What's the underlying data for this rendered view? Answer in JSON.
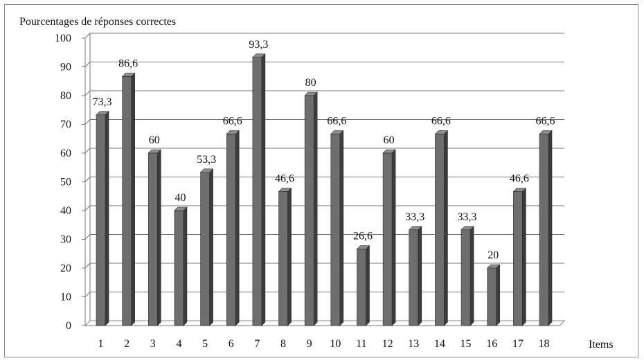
{
  "chart_data": {
    "type": "bar",
    "title": "Pourcentages de réponses correctes",
    "xlabel": "Items",
    "ylabel": "",
    "ylim": [
      0,
      100
    ],
    "yticks": [
      0,
      10,
      20,
      30,
      40,
      50,
      60,
      70,
      80,
      90,
      100
    ],
    "grid": true,
    "legend": "none",
    "categories": [
      "1",
      "2",
      "3",
      "4",
      "5",
      "6",
      "7",
      "8",
      "9",
      "10",
      "11",
      "12",
      "13",
      "14",
      "15",
      "16",
      "17",
      "18"
    ],
    "values": [
      73.3,
      86.6,
      60,
      40,
      53.3,
      66.6,
      93.3,
      46.6,
      80,
      66.6,
      26.6,
      60,
      33.3,
      66.6,
      33.3,
      20,
      46.6,
      66.6
    ],
    "value_labels": [
      "73,3",
      "86,6",
      "60",
      "40",
      "53,3",
      "66,6",
      "93,3",
      "46,6",
      "80",
      "66,6",
      "26,6",
      "60",
      "33,3",
      "66,6",
      "33,3",
      "20",
      "46,6",
      "66,6"
    ],
    "bar_color": "#6e6e6e"
  }
}
